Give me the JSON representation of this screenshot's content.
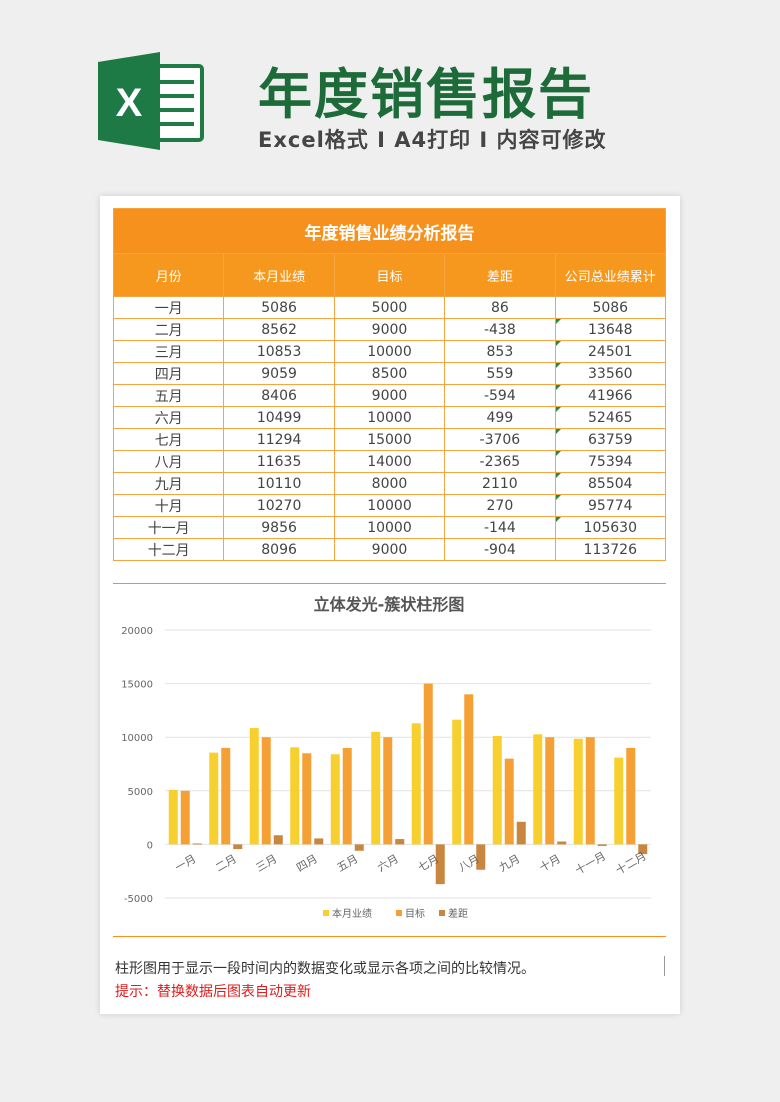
{
  "header": {
    "main_title": "年度销售报告",
    "sub_title": "Excel格式 I A4打印 I 内容可修改",
    "logo_letter": "X"
  },
  "table": {
    "title": "年度销售业绩分析报告",
    "headers": [
      "月份",
      "本月业绩",
      "目标",
      "差距",
      "公司总业绩累计"
    ],
    "rows": [
      [
        "一月",
        "5086",
        "5000",
        "86",
        "5086"
      ],
      [
        "二月",
        "8562",
        "9000",
        "-438",
        "13648"
      ],
      [
        "三月",
        "10853",
        "10000",
        "853",
        "24501"
      ],
      [
        "四月",
        "9059",
        "8500",
        "559",
        "33560"
      ],
      [
        "五月",
        "8406",
        "9000",
        "-594",
        "41966"
      ],
      [
        "六月",
        "10499",
        "10000",
        "499",
        "52465"
      ],
      [
        "七月",
        "11294",
        "15000",
        "-3706",
        "63759"
      ],
      [
        "八月",
        "11635",
        "14000",
        "-2365",
        "75394"
      ],
      [
        "九月",
        "10110",
        "8000",
        "2110",
        "85504"
      ],
      [
        "十月",
        "10270",
        "10000",
        "270",
        "95774"
      ],
      [
        "十一月",
        "9856",
        "10000",
        "-144",
        "105630"
      ],
      [
        "十二月",
        "8096",
        "9000",
        "-904",
        "113726"
      ]
    ]
  },
  "chart_data": {
    "type": "bar",
    "title": "立体发光-簇状柱形图",
    "categories": [
      "一月",
      "二月",
      "三月",
      "四月",
      "五月",
      "六月",
      "七月",
      "八月",
      "九月",
      "十月",
      "十一月",
      "十二月"
    ],
    "series": [
      {
        "name": "本月业绩",
        "color": "#f7cf2e",
        "values": [
          5086,
          8562,
          10853,
          9059,
          8406,
          10499,
          11294,
          11635,
          10110,
          10270,
          9856,
          8096
        ]
      },
      {
        "name": "目标",
        "color": "#f5a035",
        "values": [
          5000,
          9000,
          10000,
          8500,
          9000,
          10000,
          15000,
          14000,
          8000,
          10000,
          10000,
          9000
        ]
      },
      {
        "name": "差距",
        "color": "#c9863e",
        "values": [
          86,
          -438,
          853,
          559,
          -594,
          499,
          -3706,
          -2365,
          2110,
          270,
          -144,
          -904
        ]
      }
    ],
    "ylim": [
      -5000,
      20000
    ],
    "yticks": [
      "20000",
      "15000",
      "10000",
      "5000",
      "0",
      "-5000"
    ],
    "grid": true,
    "legend_position": "bottom"
  },
  "footer": {
    "description": "柱形图用于显示一段时间内的数据变化或显示各项之间的比较情况。",
    "tip": "提示：替换数据后图表自动更新"
  }
}
